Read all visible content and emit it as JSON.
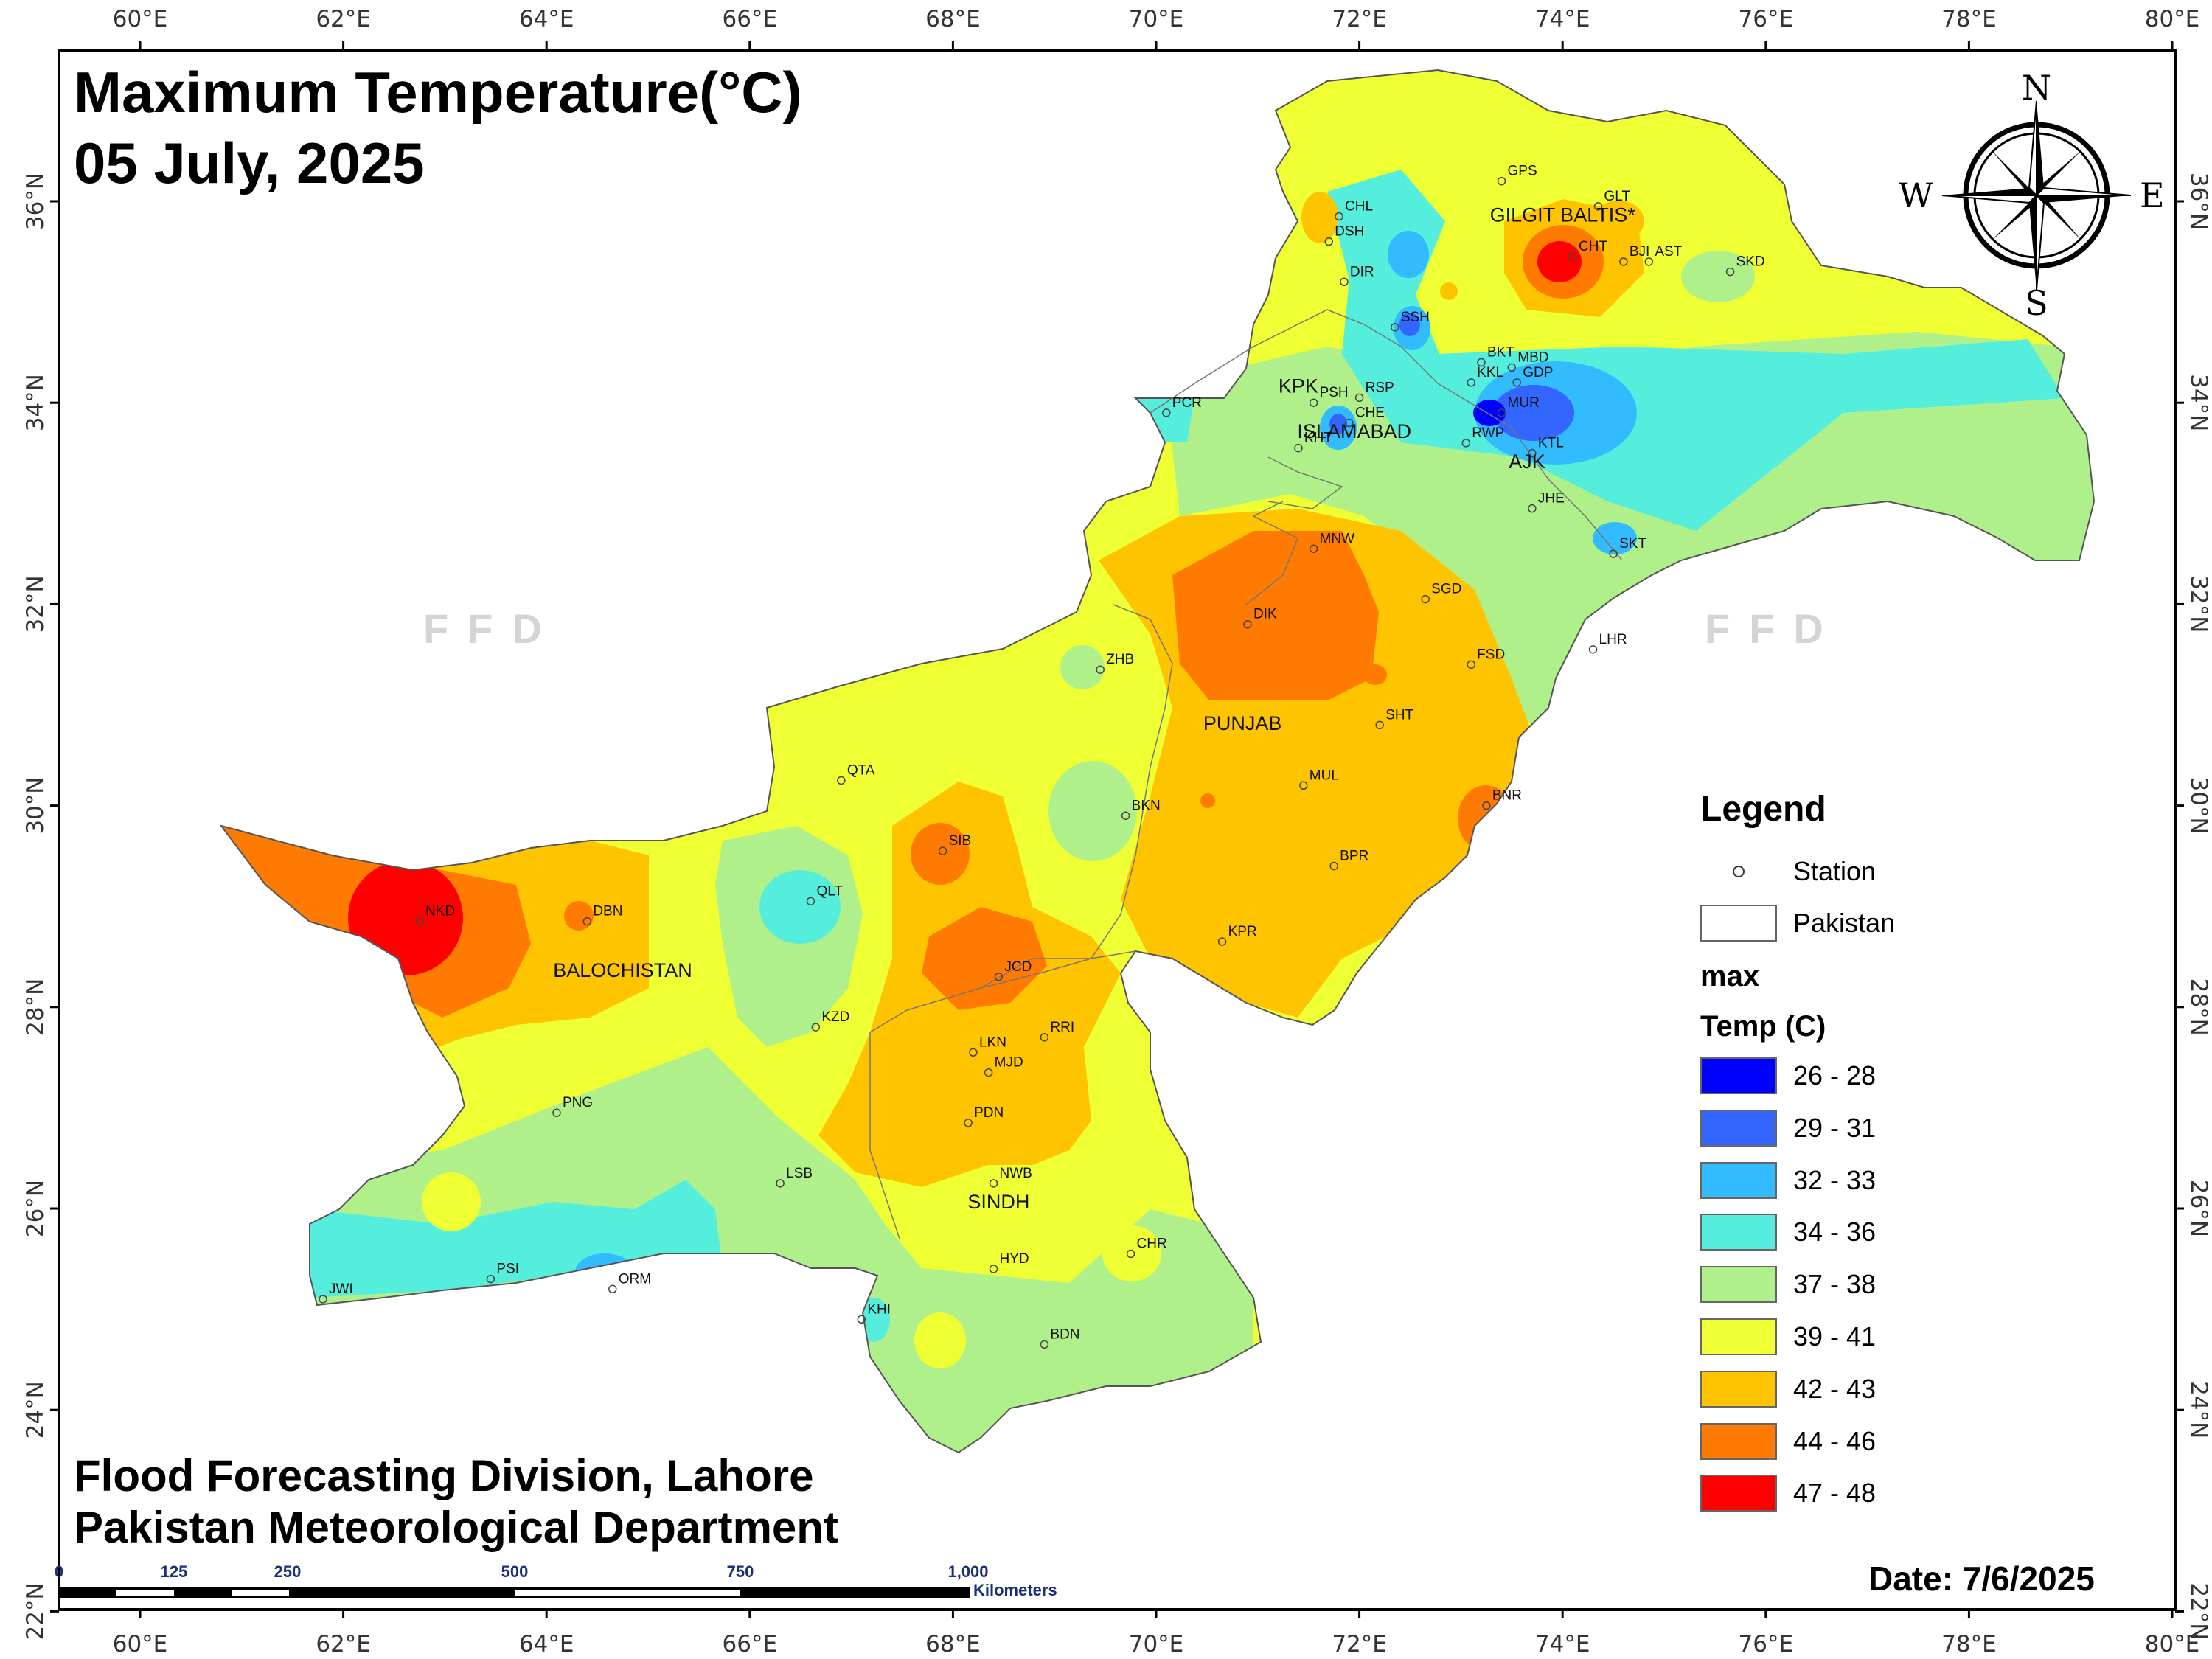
{
  "title": {
    "line1": "Maximum Temperature(°C)",
    "line2": "05 July, 2025"
  },
  "credits": {
    "line1": "Flood Forecasting Division, Lahore",
    "line2": "Pakistan Meteorological Department"
  },
  "date_label": "Date: 7/6/2025",
  "watermark": "FFD",
  "compass": {
    "n": "N",
    "s": "S",
    "e": "E",
    "w": "W"
  },
  "axes": {
    "lon_labels": [
      "60°E",
      "62°E",
      "64°E",
      "66°E",
      "68°E",
      "70°E",
      "72°E",
      "74°E",
      "76°E",
      "78°E",
      "80°E"
    ],
    "lat_labels": [
      "36°N",
      "34°N",
      "32°N",
      "30°N",
      "28°N",
      "26°N",
      "24°N",
      "22°N"
    ]
  },
  "scale_bar": {
    "ticks": [
      "0",
      "125",
      "250",
      "500",
      "750",
      "1,000"
    ],
    "unit": "Kilometers"
  },
  "legend": {
    "title": "Legend",
    "station_label": "Station",
    "pakistan_label": "Pakistan",
    "field_label": "max",
    "unit_label": "Temp (C)",
    "classes": [
      {
        "range": "26 - 28",
        "color": "#0000ff"
      },
      {
        "range": "29 - 31",
        "color": "#3366ff"
      },
      {
        "range": "32 - 33",
        "color": "#33bbff"
      },
      {
        "range": "34 - 36",
        "color": "#55eedd"
      },
      {
        "range": "37 - 38",
        "color": "#b0f08a"
      },
      {
        "range": "39 - 41",
        "color": "#eeff33"
      },
      {
        "range": "42 - 43",
        "color": "#ffc400"
      },
      {
        "range": "44 - 46",
        "color": "#ff7a00"
      },
      {
        "range": "47 - 48",
        "color": "#ff0000"
      }
    ]
  },
  "regions": [
    {
      "name": "GILGIT BALTIS*",
      "lon": 74.0,
      "lat": 35.8
    },
    {
      "name": "KPK",
      "lon": 71.4,
      "lat": 34.1
    },
    {
      "name": "ISLAMABAD",
      "lon": 71.95,
      "lat": 33.65
    },
    {
      "name": "AJK",
      "lon": 73.65,
      "lat": 33.35
    },
    {
      "name": "PUNJAB",
      "lon": 70.85,
      "lat": 30.75
    },
    {
      "name": "BALOCHISTAN",
      "lon": 64.75,
      "lat": 28.3
    },
    {
      "name": "SINDH",
      "lon": 68.45,
      "lat": 26.0
    }
  ],
  "stations": [
    {
      "code": "GPS",
      "lon": 73.4,
      "lat": 36.2
    },
    {
      "code": "GLT",
      "lon": 74.35,
      "lat": 35.95
    },
    {
      "code": "CHL",
      "lon": 71.8,
      "lat": 35.85
    },
    {
      "code": "DSH",
      "lon": 71.7,
      "lat": 35.6
    },
    {
      "code": "DIR",
      "lon": 71.85,
      "lat": 35.2
    },
    {
      "code": "CHT",
      "lon": 74.1,
      "lat": 35.45
    },
    {
      "code": "BJI",
      "lon": 74.6,
      "lat": 35.4
    },
    {
      "code": "AST",
      "lon": 74.85,
      "lat": 35.4
    },
    {
      "code": "SKD",
      "lon": 75.65,
      "lat": 35.3
    },
    {
      "code": "SSH",
      "lon": 72.35,
      "lat": 34.75
    },
    {
      "code": "BKT",
      "lon": 73.2,
      "lat": 34.4
    },
    {
      "code": "MBD",
      "lon": 73.5,
      "lat": 34.35
    },
    {
      "code": "KKL",
      "lon": 73.1,
      "lat": 34.2
    },
    {
      "code": "GDP",
      "lon": 73.55,
      "lat": 34.2
    },
    {
      "code": "MUR",
      "lon": 73.4,
      "lat": 33.9
    },
    {
      "code": "RWP",
      "lon": 73.05,
      "lat": 33.6
    },
    {
      "code": "KTL",
      "lon": 73.7,
      "lat": 33.5
    },
    {
      "code": "JHE",
      "lon": 73.7,
      "lat": 32.95
    },
    {
      "code": "PSH",
      "lon": 71.55,
      "lat": 34.0
    },
    {
      "code": "RSP",
      "lon": 72.0,
      "lat": 34.05
    },
    {
      "code": "CHE",
      "lon": 71.9,
      "lat": 33.8
    },
    {
      "code": "KHT",
      "lon": 71.4,
      "lat": 33.55
    },
    {
      "code": "PCR",
      "lon": 70.1,
      "lat": 33.9
    },
    {
      "code": "SKT",
      "lon": 74.5,
      "lat": 32.5
    },
    {
      "code": "MNW",
      "lon": 71.55,
      "lat": 32.55
    },
    {
      "code": "SGD",
      "lon": 72.65,
      "lat": 32.05
    },
    {
      "code": "DIK",
      "lon": 70.9,
      "lat": 31.8
    },
    {
      "code": "LHR",
      "lon": 74.3,
      "lat": 31.55
    },
    {
      "code": "FSD",
      "lon": 73.1,
      "lat": 31.4
    },
    {
      "code": "ZHB",
      "lon": 69.45,
      "lat": 31.35
    },
    {
      "code": "SHT",
      "lon": 72.2,
      "lat": 30.8
    },
    {
      "code": "MUL",
      "lon": 71.45,
      "lat": 30.2
    },
    {
      "code": "QTA",
      "lon": 66.9,
      "lat": 30.25
    },
    {
      "code": "BNR",
      "lon": 73.25,
      "lat": 30.0
    },
    {
      "code": "BKN",
      "lon": 69.7,
      "lat": 29.9
    },
    {
      "code": "SIB",
      "lon": 67.9,
      "lat": 29.55
    },
    {
      "code": "BPR",
      "lon": 71.75,
      "lat": 29.4
    },
    {
      "code": "QLT",
      "lon": 66.6,
      "lat": 29.05
    },
    {
      "code": "DBN",
      "lon": 64.4,
      "lat": 28.85
    },
    {
      "code": "NKD",
      "lon": 62.75,
      "lat": 28.85
    },
    {
      "code": "KPR",
      "lon": 70.65,
      "lat": 28.65
    },
    {
      "code": "JCD",
      "lon": 68.45,
      "lat": 28.3
    },
    {
      "code": "KZD",
      "lon": 66.65,
      "lat": 27.8
    },
    {
      "code": "RRI",
      "lon": 68.9,
      "lat": 27.7
    },
    {
      "code": "LKN",
      "lon": 68.2,
      "lat": 27.55
    },
    {
      "code": "MJD",
      "lon": 68.35,
      "lat": 27.35
    },
    {
      "code": "PNG",
      "lon": 64.1,
      "lat": 26.95
    },
    {
      "code": "PDN",
      "lon": 68.15,
      "lat": 26.85
    },
    {
      "code": "NWB",
      "lon": 68.4,
      "lat": 26.25
    },
    {
      "code": "LSB",
      "lon": 66.3,
      "lat": 26.25
    },
    {
      "code": "CHR",
      "lon": 69.75,
      "lat": 25.55
    },
    {
      "code": "PSI",
      "lon": 63.45,
      "lat": 25.3
    },
    {
      "code": "JWI",
      "lon": 61.8,
      "lat": 25.1
    },
    {
      "code": "ORM",
      "lon": 64.65,
      "lat": 25.2
    },
    {
      "code": "HYD",
      "lon": 68.4,
      "lat": 25.4
    },
    {
      "code": "KHI",
      "lon": 67.1,
      "lat": 24.9
    },
    {
      "code": "BDN",
      "lon": 68.9,
      "lat": 24.65
    }
  ]
}
